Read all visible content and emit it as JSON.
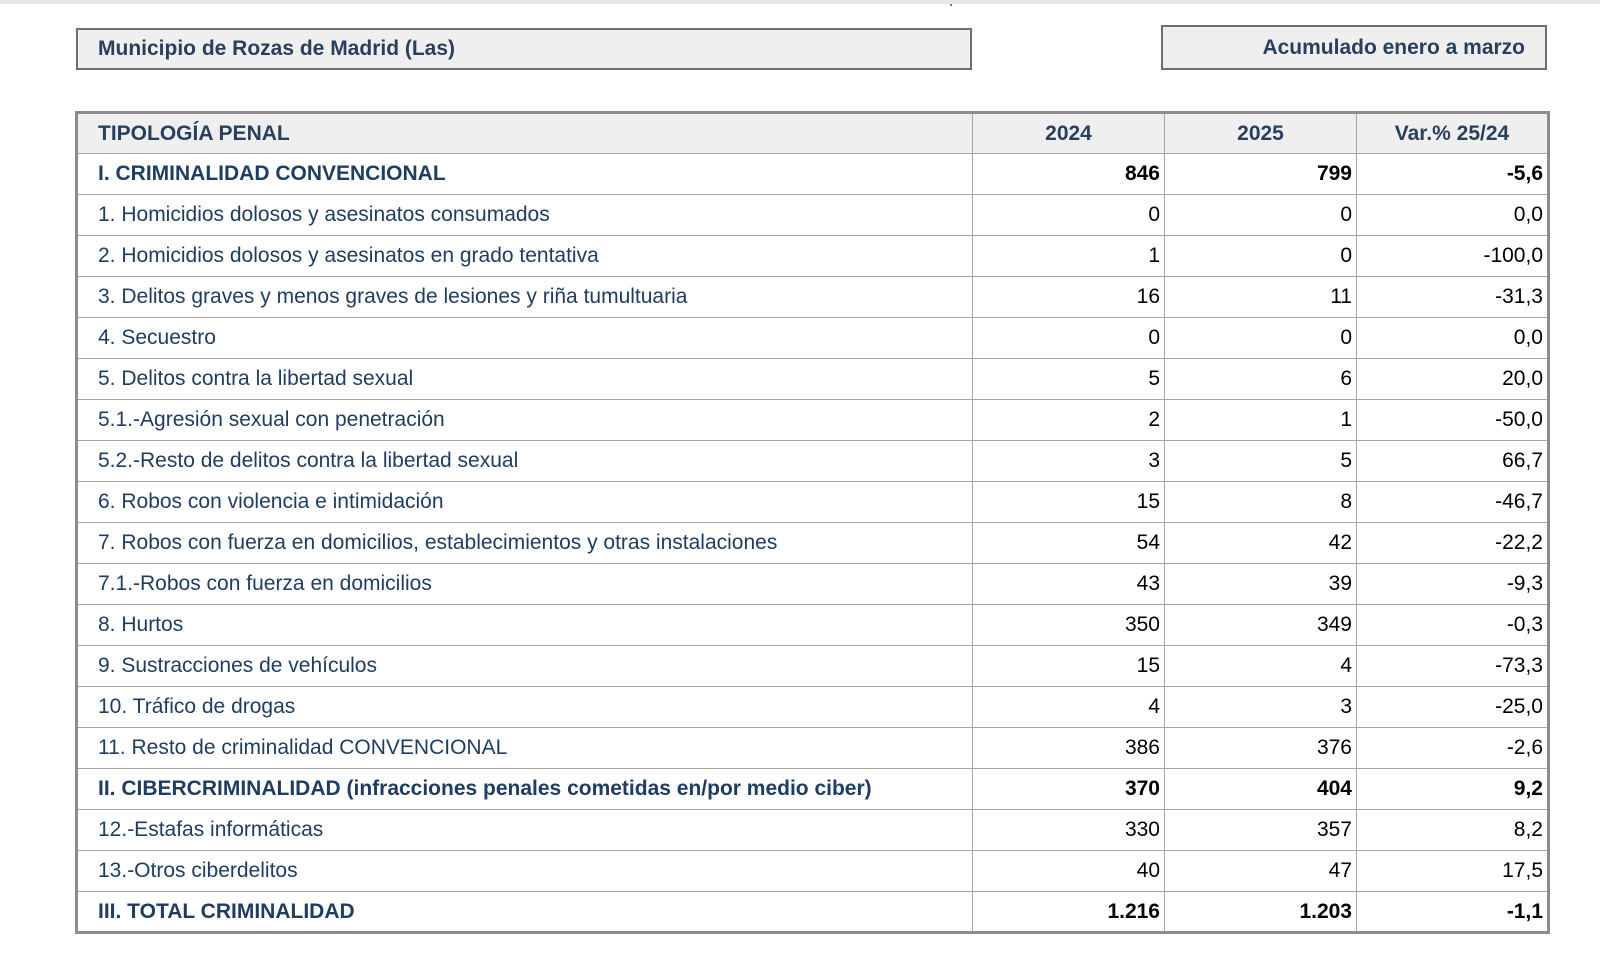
{
  "header": {
    "municipality": "Municipio de Rozas de Madrid (Las)",
    "period": "Acumulado enero a marzo"
  },
  "table": {
    "columns": [
      "TIPOLOGÍA PENAL",
      "2024",
      "2025",
      "Var.% 25/24"
    ],
    "rows": [
      {
        "label": "I. CRIMINALIDAD CONVENCIONAL",
        "v2024": "846",
        "v2025": "799",
        "var": "-5,6",
        "bold": true
      },
      {
        "label": "1. Homicidios dolosos y asesinatos consumados",
        "v2024": "0",
        "v2025": "0",
        "var": "0,0",
        "bold": false
      },
      {
        "label": "2. Homicidios dolosos y asesinatos en grado tentativa",
        "v2024": "1",
        "v2025": "0",
        "var": "-100,0",
        "bold": false
      },
      {
        "label": "3. Delitos graves y menos graves de lesiones y riña tumultuaria",
        "v2024": "16",
        "v2025": "11",
        "var": "-31,3",
        "bold": false
      },
      {
        "label": "4. Secuestro",
        "v2024": "0",
        "v2025": "0",
        "var": "0,0",
        "bold": false
      },
      {
        "label": "5. Delitos contra la libertad sexual",
        "v2024": "5",
        "v2025": "6",
        "var": "20,0",
        "bold": false
      },
      {
        "label": "5.1.-Agresión sexual con penetración",
        "v2024": "2",
        "v2025": "1",
        "var": "-50,0",
        "bold": false
      },
      {
        "label": "5.2.-Resto de delitos contra la libertad sexual",
        "v2024": "3",
        "v2025": "5",
        "var": "66,7",
        "bold": false
      },
      {
        "label": "6. Robos con violencia e intimidación",
        "v2024": "15",
        "v2025": "8",
        "var": "-46,7",
        "bold": false
      },
      {
        "label": "7. Robos con fuerza en domicilios, establecimientos y otras instalaciones",
        "v2024": "54",
        "v2025": "42",
        "var": "-22,2",
        "bold": false
      },
      {
        "label": "7.1.-Robos con fuerza en domicilios",
        "v2024": "43",
        "v2025": "39",
        "var": "-9,3",
        "bold": false
      },
      {
        "label": "8. Hurtos",
        "v2024": "350",
        "v2025": "349",
        "var": "-0,3",
        "bold": false
      },
      {
        "label": "9. Sustracciones de vehículos",
        "v2024": "15",
        "v2025": "4",
        "var": "-73,3",
        "bold": false
      },
      {
        "label": "10. Tráfico de drogas",
        "v2024": "4",
        "v2025": "3",
        "var": "-25,0",
        "bold": false
      },
      {
        "label": "11. Resto de criminalidad CONVENCIONAL",
        "v2024": "386",
        "v2025": "376",
        "var": "-2,6",
        "bold": false
      },
      {
        "label": "II. CIBERCRIMINALIDAD (infracciones penales cometidas en/por medio ciber)",
        "v2024": "370",
        "v2025": "404",
        "var": "9,2",
        "bold": true
      },
      {
        "label": "12.-Estafas informáticas",
        "v2024": "330",
        "v2025": "357",
        "var": "8,2",
        "bold": false
      },
      {
        "label": "13.-Otros ciberdelitos",
        "v2024": "40",
        "v2025": "47",
        "var": "17,5",
        "bold": false
      },
      {
        "label": "III. TOTAL CRIMINALIDAD",
        "v2024": "1.216",
        "v2025": "1.203",
        "var": "-1,1",
        "bold": true
      }
    ]
  },
  "colors": {
    "label_text": "#1f3d63",
    "header_bg": "#efefef",
    "border": "#a5a5a5"
  }
}
